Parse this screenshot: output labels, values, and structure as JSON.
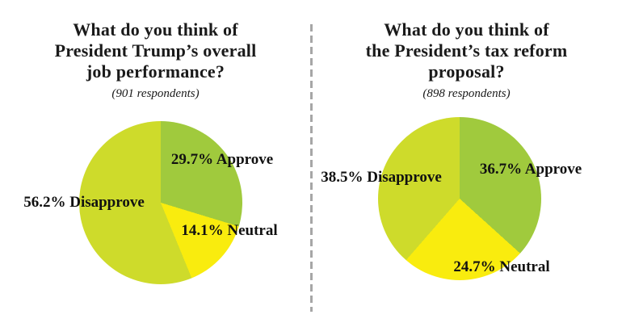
{
  "divider_color": "#a6a6a6",
  "colors": {
    "approve": "#a0ca3d",
    "neutral": "#f9ec0e",
    "disapprove": "#cedb2b"
  },
  "panels": [
    {
      "title_lines": [
        "What do you think of",
        "President Trump’s overall",
        "job performance?"
      ],
      "subtitle": "(901 respondents)",
      "slice_labels": {
        "approve": "29.7% Approve",
        "neutral": "14.1% Neutral",
        "disapprove": "56.2% Disapprove"
      }
    },
    {
      "title_lines": [
        "What do you think of",
        "the President’s tax reform",
        "proposal?"
      ],
      "subtitle": "(898 respondents)",
      "slice_labels": {
        "approve": "36.7% Approve",
        "neutral": "24.7% Neutral",
        "disapprove": "38.5% Disapprove"
      }
    }
  ],
  "chart_data": [
    {
      "type": "pie",
      "title": "What do you think of President Trump’s overall job performance?",
      "subtitle": "(901 respondents)",
      "respondents": 901,
      "categories": [
        "Approve",
        "Neutral",
        "Disapprove"
      ],
      "values": [
        29.7,
        14.1,
        56.2
      ],
      "colors": [
        "#a0ca3d",
        "#f9ec0e",
        "#cedb2b"
      ],
      "start_angle_deg": 0,
      "direction": "clockwise",
      "legend": "labels-on-slices"
    },
    {
      "type": "pie",
      "title": "What do you think of the President’s tax reform proposal?",
      "subtitle": "(898 respondents)",
      "respondents": 898,
      "categories": [
        "Approve",
        "Neutral",
        "Disapprove"
      ],
      "values": [
        36.7,
        24.7,
        38.5
      ],
      "colors": [
        "#a0ca3d",
        "#f9ec0e",
        "#cedb2b"
      ],
      "start_angle_deg": 0,
      "direction": "clockwise",
      "legend": "labels-on-slices"
    }
  ]
}
